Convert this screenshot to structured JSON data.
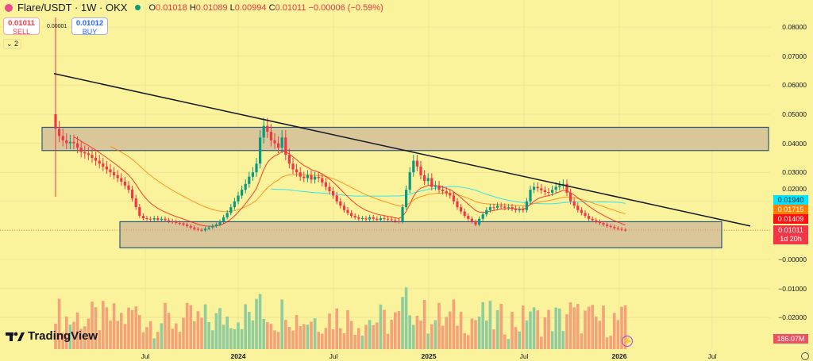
{
  "header": {
    "symbol": "Flare/USDT · 1W · OKX",
    "open_label": "O",
    "open": "0.01018",
    "high_label": "H",
    "high": "0.01089",
    "low_label": "L",
    "low": "0.00994",
    "close_label": "C",
    "close": "0.01011",
    "change": "−0.00006 (−0.59%)"
  },
  "trade": {
    "sell_price": "0.01011",
    "sell_label": "SELL",
    "buy_price": "0.01012",
    "buy_label": "BUY",
    "spread": "0.00001"
  },
  "indicators_toggle": "2",
  "price_axis": {
    "ticks": [
      "0.08000",
      "0.07000",
      "0.06000",
      "0.05000",
      "0.04000",
      "0.03000",
      "0.02000",
      "−0.00000",
      "−0.01000",
      "−0.02000"
    ],
    "ma_tags": [
      {
        "value": "0.01940",
        "color": "#00e5ff"
      },
      {
        "value": "0.01715",
        "color": "#ff7f00"
      },
      {
        "value": "0.01409",
        "color": "#ff1010"
      }
    ],
    "last_price": "0.01011",
    "countdown": "1d 20h",
    "volume_tag": "186.07M"
  },
  "time_axis": [
    "Jul",
    "2024",
    "Jul",
    "2025",
    "Jul",
    "2026",
    "Jul"
  ],
  "logo_text": "TradingView",
  "colors": {
    "up": "#089981",
    "down": "#f23645",
    "vol_up": "#8fcc9e",
    "vol_down": "#f5a27a",
    "trendline": "#131722",
    "zone_fill": "#d9c79a",
    "zone_border": "#2a5a7a"
  },
  "chart_data": {
    "type": "candlestick",
    "interval": "1W",
    "start": "2023-01",
    "end": "2026-01",
    "ylim": [
      -0.025,
      0.085
    ],
    "closes": [
      0.045,
      0.0425,
      0.041,
      0.04,
      0.0405,
      0.04,
      0.0385,
      0.037,
      0.0365,
      0.036,
      0.035,
      0.034,
      0.033,
      0.032,
      0.031,
      0.03,
      0.029,
      0.028,
      0.0268,
      0.0255,
      0.024,
      0.021,
      0.018,
      0.015,
      0.0142,
      0.014,
      0.0138,
      0.0142,
      0.0136,
      0.014,
      0.0135,
      0.0132,
      0.013,
      0.0126,
      0.0124,
      0.012,
      0.0115,
      0.011,
      0.0105,
      0.0102,
      0.01,
      0.0106,
      0.011,
      0.0115,
      0.012,
      0.013,
      0.0145,
      0.016,
      0.018,
      0.02,
      0.022,
      0.024,
      0.026,
      0.0285,
      0.03,
      0.033,
      0.042,
      0.046,
      0.044,
      0.041,
      0.04,
      0.0385,
      0.042,
      0.036,
      0.033,
      0.031,
      0.03,
      0.0285,
      0.028,
      0.029,
      0.0275,
      0.0285,
      0.028,
      0.0265,
      0.025,
      0.0235,
      0.022,
      0.02,
      0.0185,
      0.017,
      0.016,
      0.015,
      0.0145,
      0.014,
      0.0142,
      0.0138,
      0.0145,
      0.014,
      0.0136,
      0.0142,
      0.014,
      0.0138,
      0.0135,
      0.0132,
      0.013,
      0.018,
      0.024,
      0.03,
      0.034,
      0.032,
      0.029,
      0.027,
      0.028,
      0.025,
      0.0255,
      0.024,
      0.0235,
      0.0228,
      0.022,
      0.02,
      0.018,
      0.0165,
      0.015,
      0.014,
      0.013,
      0.012,
      0.014,
      0.0155,
      0.017,
      0.018,
      0.0178,
      0.0185,
      0.0182,
      0.0178,
      0.018,
      0.0175,
      0.017,
      0.0172,
      0.017,
      0.02,
      0.024,
      0.025,
      0.0245,
      0.0238,
      0.0232,
      0.023,
      0.024,
      0.025,
      0.0255,
      0.026,
      0.023,
      0.02,
      0.0185,
      0.017,
      0.016,
      0.015,
      0.014,
      0.0135,
      0.013,
      0.0125,
      0.012,
      0.0115,
      0.0112,
      0.0108,
      0.0105,
      0.0102,
      0.0101
    ],
    "first_open": 0.05,
    "moving_averages": [
      {
        "last": 0.0194,
        "color": "#00e5ff"
      },
      {
        "last": 0.01715,
        "color": "#ff7f00"
      },
      {
        "last": 0.01409,
        "color": "#ff1010"
      }
    ],
    "zones": [
      {
        "from": 0.0375,
        "to": 0.0455
      },
      {
        "from": 0.004,
        "to": 0.013
      }
    ],
    "trendline": {
      "from_price": 0.064,
      "to_price": 0.0115
    }
  }
}
